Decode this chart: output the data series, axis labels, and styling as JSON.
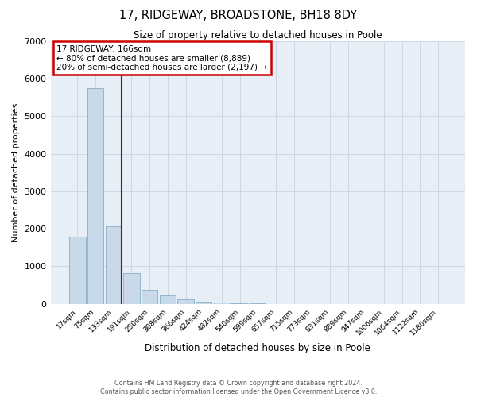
{
  "title": "17, RIDGEWAY, BROADSTONE, BH18 8DY",
  "subtitle": "Size of property relative to detached houses in Poole",
  "xlabel": "Distribution of detached houses by size in Poole",
  "ylabel": "Number of detached properties",
  "bin_labels": [
    "17sqm",
    "75sqm",
    "133sqm",
    "191sqm",
    "250sqm",
    "308sqm",
    "366sqm",
    "424sqm",
    "482sqm",
    "540sqm",
    "599sqm",
    "657sqm",
    "715sqm",
    "773sqm",
    "831sqm",
    "889sqm",
    "947sqm",
    "1006sqm",
    "1064sqm",
    "1122sqm",
    "1180sqm"
  ],
  "bar_heights": [
    1780,
    5750,
    2060,
    820,
    370,
    230,
    115,
    55,
    30,
    10,
    5,
    0,
    0,
    0,
    0,
    0,
    0,
    0,
    0,
    0,
    0
  ],
  "bar_color": "#c8d9e9",
  "bar_edge_color": "#8aaec8",
  "grid_color": "#cdd6e4",
  "background_color": "#e8eef5",
  "vline_color": "#aa0000",
  "vline_x": 2.46,
  "annotation_title": "17 RIDGEWAY: 166sqm",
  "annotation_line1": "← 80% of detached houses are smaller (8,889)",
  "annotation_line2": "20% of semi-detached houses are larger (2,197) →",
  "annotation_box_color": "#cc0000",
  "ylim": [
    0,
    7000
  ],
  "yticks": [
    0,
    1000,
    2000,
    3000,
    4000,
    5000,
    6000,
    7000
  ],
  "footer1": "Contains HM Land Registry data © Crown copyright and database right 2024.",
  "footer2": "Contains public sector information licensed under the Open Government Licence v3.0."
}
